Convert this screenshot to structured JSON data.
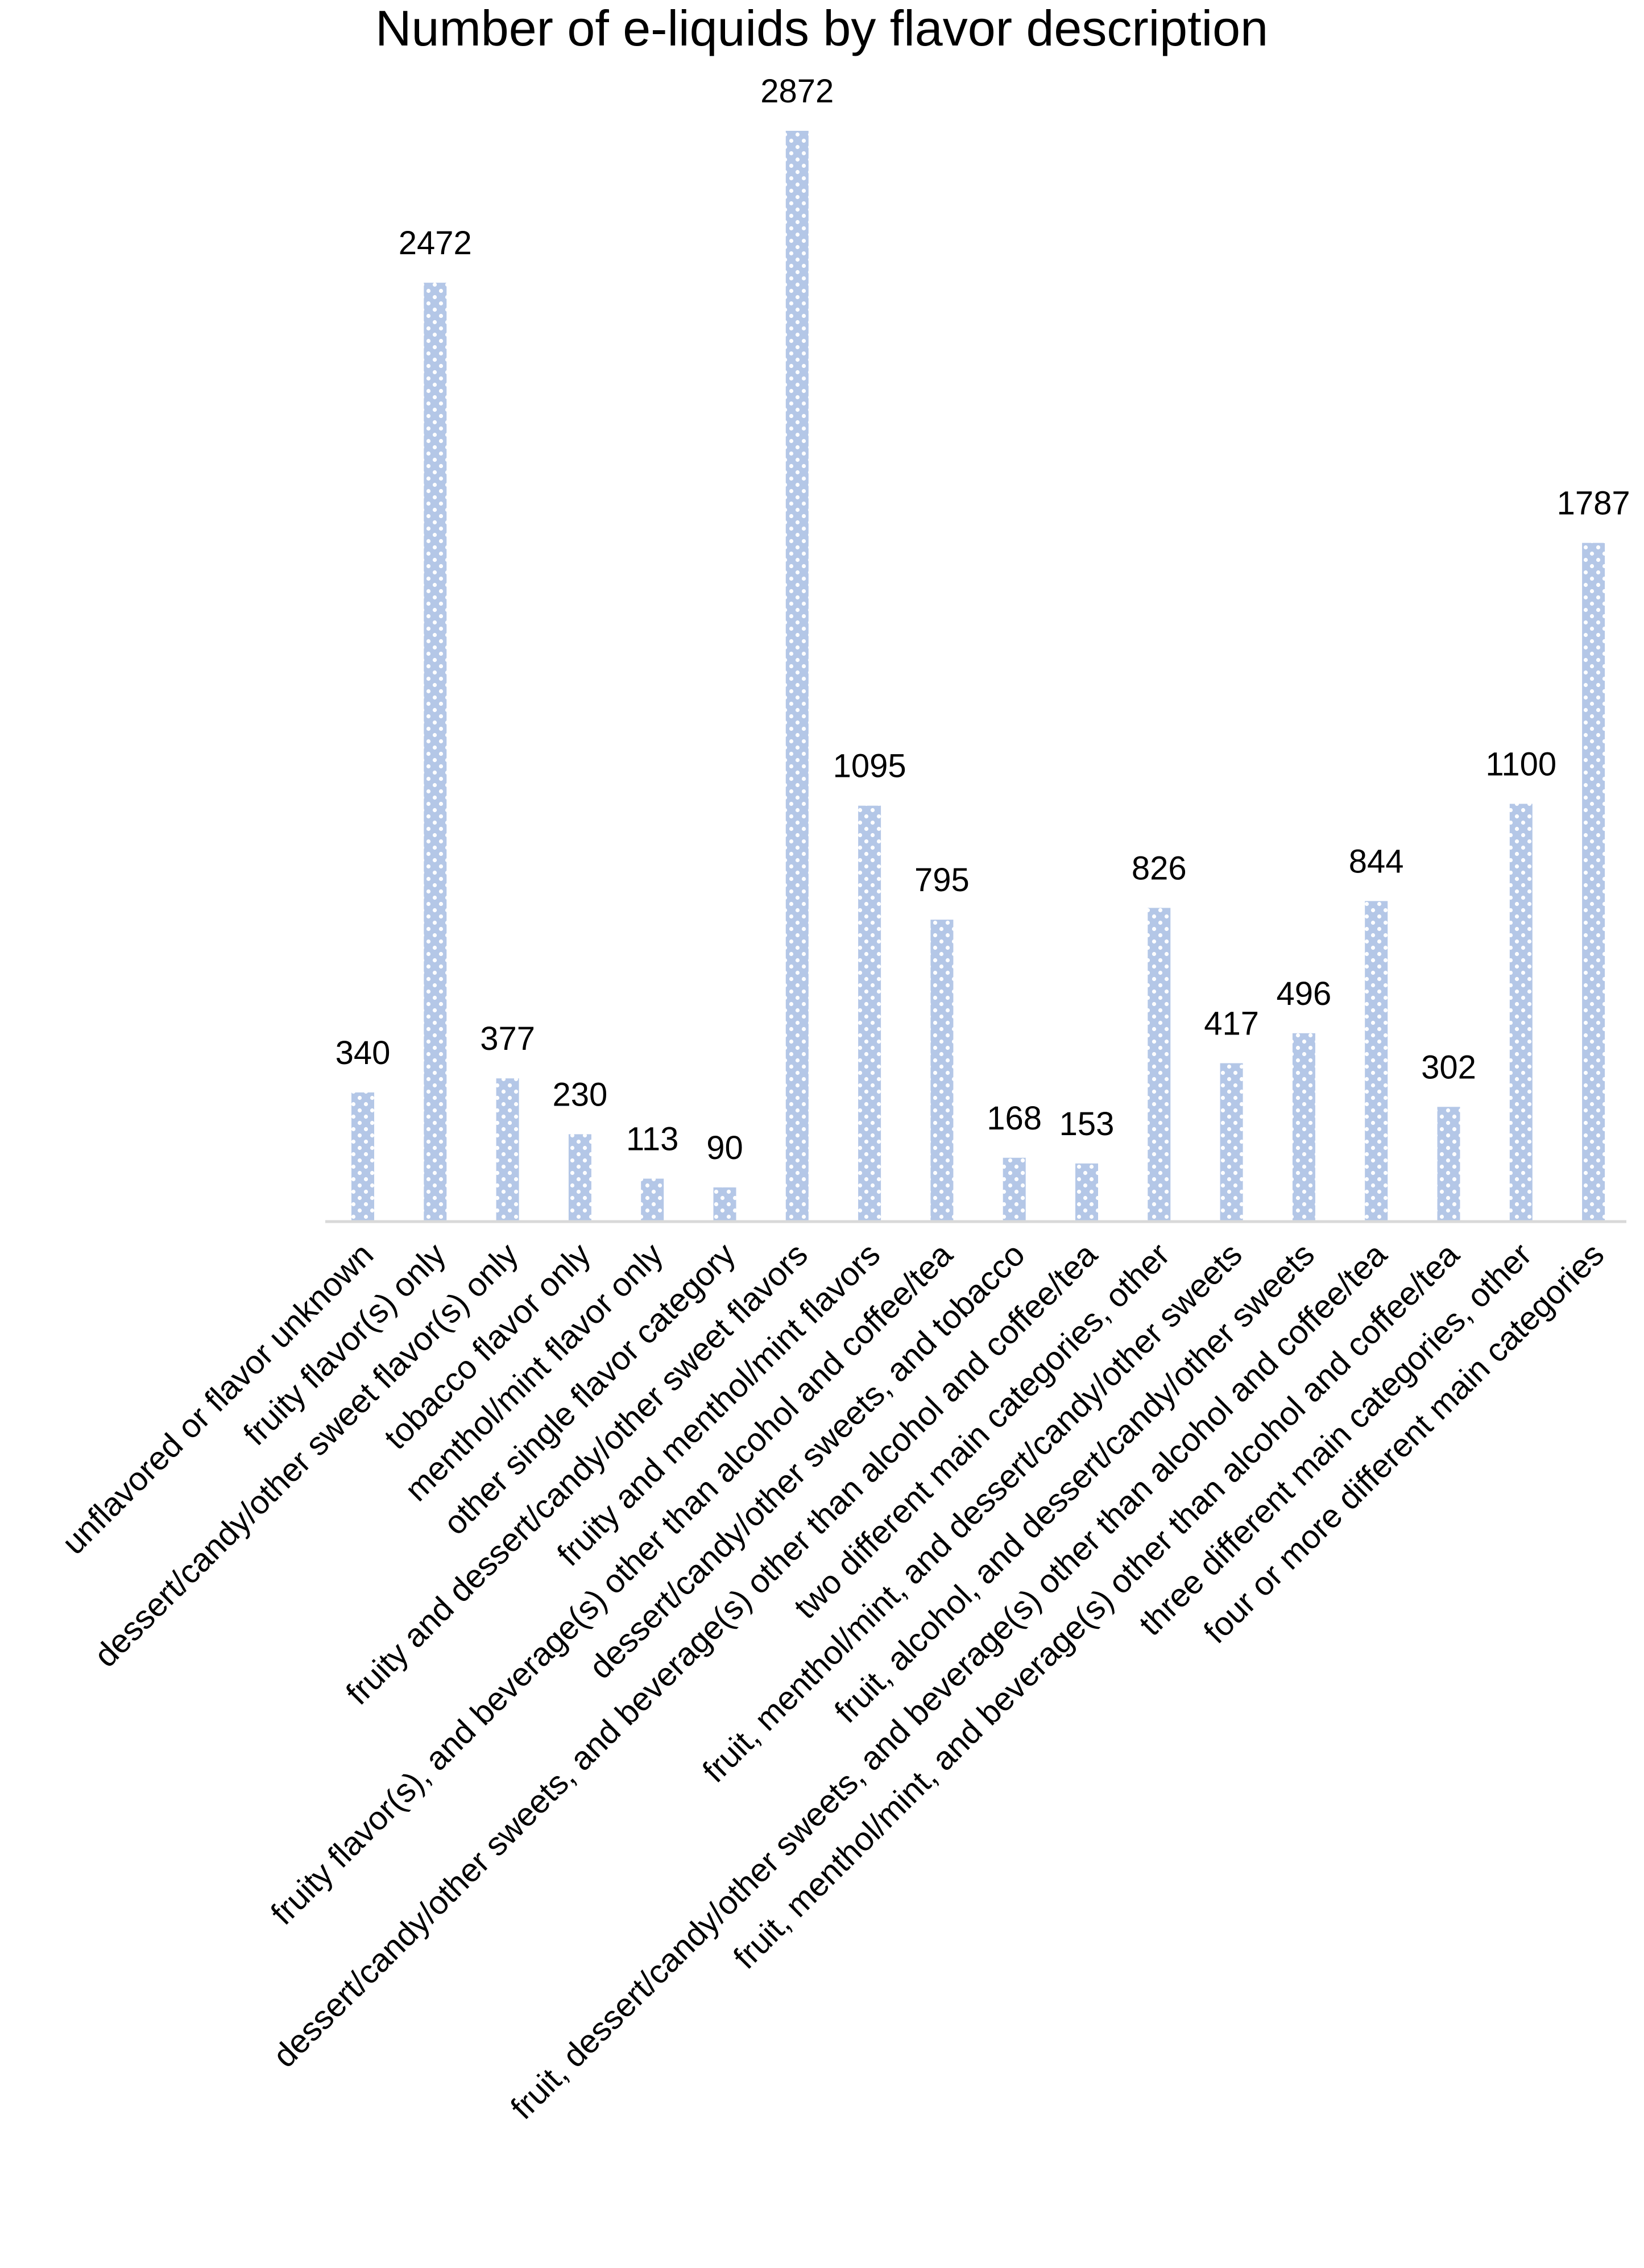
{
  "chart_data": {
    "type": "bar",
    "title": "Number of e-liquids by flavor description",
    "categories": [
      "unflavored or flavor unknown",
      "fruity flavor(s) only",
      "dessert/candy/other sweet flavor(s) only",
      "tobacco flavor only",
      "menthol/mint flavor only",
      "other single flavor category",
      "fruity and dessert/candy/other sweet flavors",
      "fruity and menthol/mint flavors",
      "fruity flavor(s), and beverage(s) other than alcohol and coffee/tea",
      "dessert/candy/other sweets, and tobacco",
      "dessert/candy/other sweets, and beverage(s) other than alcohol and coffee/tea",
      "two different main categories, other",
      "fruit, menthol/mint, and dessert/candy/other sweets",
      "fruit, alcohol, and dessert/candy/other sweets",
      "fruit, dessert/candy/other sweets, and beverage(s) other than alcohol and coffee/tea",
      "fruit, menthol/mint, and beverage(s) other than alcohol and coffee/tea",
      "three different main categories, other",
      "four or more different main categories"
    ],
    "values": [
      340,
      2472,
      377,
      230,
      113,
      90,
      2872,
      1095,
      795,
      168,
      153,
      826,
      417,
      496,
      844,
      302,
      1100,
      1787
    ],
    "xlabel": "",
    "ylabel": "",
    "ylim": [
      0,
      2872
    ],
    "grid": false,
    "legend": "none",
    "y_axis_visible": false,
    "colors": {
      "bar_fill": "#b4c7e7",
      "bar_dots": "#ffffff",
      "axis_line": "#d9d9d9",
      "text": "#000000"
    }
  }
}
